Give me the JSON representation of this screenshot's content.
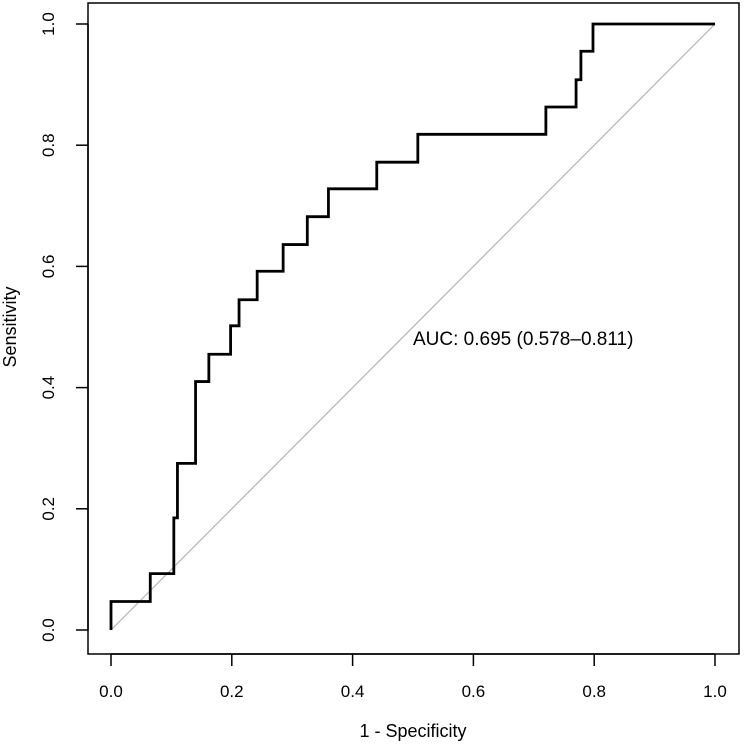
{
  "chart_data": {
    "type": "line",
    "title": "",
    "xlabel": "1 - Specificity",
    "ylabel": "Sensitivity",
    "xlim": [
      0,
      1
    ],
    "ylim": [
      0,
      1
    ],
    "x_ticks": [
      0.0,
      0.2,
      0.4,
      0.6,
      0.8,
      1.0
    ],
    "y_ticks": [
      0.0,
      0.2,
      0.4,
      0.6,
      0.8,
      1.0
    ],
    "x_tick_labels": [
      "0.0",
      "0.2",
      "0.4",
      "0.6",
      "0.8",
      "1.0"
    ],
    "y_tick_labels": [
      "0.0",
      "0.2",
      "0.4",
      "0.6",
      "0.8",
      "1.0"
    ],
    "grid": false,
    "annotation": "AUC: 0.695 (0.578–0.811)",
    "annotation_position": {
      "x": 0.5,
      "y": 0.48
    },
    "reference_line": {
      "name": "chance",
      "x": [
        0,
        1
      ],
      "y": [
        0,
        1
      ],
      "color": "#b3b3b3"
    },
    "series": [
      {
        "name": "ROC",
        "color": "#000000",
        "x": [
          0,
          0,
          0.065,
          0.065,
          0.104,
          0.104,
          0.11,
          0.11,
          0.14,
          0.14,
          0.162,
          0.162,
          0.198,
          0.198,
          0.212,
          0.212,
          0.242,
          0.242,
          0.285,
          0.285,
          0.325,
          0.325,
          0.36,
          0.36,
          0.44,
          0.44,
          0.508,
          0.508,
          0.72,
          0.72,
          0.77,
          0.77,
          0.778,
          0.778,
          0.798,
          0.798,
          1.0
        ],
        "y": [
          0,
          0.047,
          0.047,
          0.093,
          0.093,
          0.185,
          0.185,
          0.275,
          0.275,
          0.41,
          0.41,
          0.455,
          0.455,
          0.502,
          0.502,
          0.545,
          0.545,
          0.592,
          0.592,
          0.636,
          0.636,
          0.682,
          0.682,
          0.728,
          0.728,
          0.772,
          0.772,
          0.818,
          0.818,
          0.863,
          0.863,
          0.908,
          0.908,
          0.955,
          0.955,
          1.0,
          1.0
        ]
      }
    ]
  }
}
